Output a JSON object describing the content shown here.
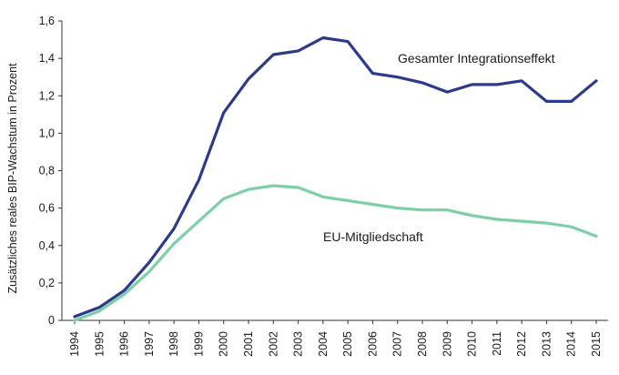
{
  "chart_data": {
    "type": "line",
    "title": "",
    "xlabel": "",
    "ylabel": "Zusätzliches reales BIP-Wachstum in Prozent",
    "x": [
      "1994",
      "1995",
      "1996",
      "1997",
      "1998",
      "1999",
      "2000",
      "2001",
      "2002",
      "2003",
      "2004",
      "2005",
      "2006",
      "2007",
      "2008",
      "2009",
      "2010",
      "2011",
      "2012",
      "2013",
      "2014",
      "2015"
    ],
    "ylim": [
      0,
      1.6
    ],
    "yticks": [
      "0",
      "0,2",
      "0,4",
      "0,6",
      "0,8",
      "1,0",
      "1,2",
      "1,4",
      "1,6"
    ],
    "grid": false,
    "series": [
      {
        "name": "Gesamter Integrationseffekt",
        "color": "#2b3a8a",
        "values": [
          0.02,
          0.07,
          0.16,
          0.31,
          0.49,
          0.75,
          1.11,
          1.29,
          1.42,
          1.44,
          1.51,
          1.49,
          1.32,
          1.3,
          1.27,
          1.22,
          1.26,
          1.26,
          1.28,
          1.17,
          1.17,
          1.28
        ]
      },
      {
        "name": "EU-Mitgliedschaft",
        "color": "#7ccfa6",
        "values": [
          0.0,
          0.05,
          0.14,
          0.26,
          0.41,
          0.53,
          0.65,
          0.7,
          0.72,
          0.71,
          0.66,
          0.64,
          0.62,
          0.6,
          0.59,
          0.59,
          0.56,
          0.54,
          0.53,
          0.52,
          0.5,
          0.45
        ]
      }
    ]
  }
}
